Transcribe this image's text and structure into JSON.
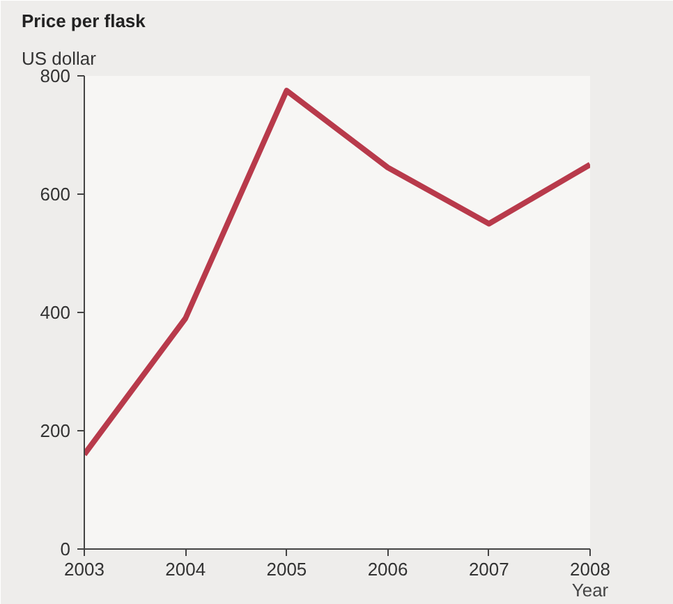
{
  "chart_data": {
    "type": "line",
    "title": "Price per flask",
    "subtitle": "US dollar",
    "xlabel": "Year",
    "x": [
      2003,
      2004,
      2005,
      2006,
      2007,
      2008
    ],
    "series": [
      {
        "color": "#b83a4b",
        "values": [
          160,
          390,
          775,
          645,
          550,
          650
        ]
      }
    ],
    "xlim": [
      2003,
      2008
    ],
    "xticks": [
      2003,
      2004,
      2005,
      2006,
      2007,
      2008
    ],
    "ylim": [
      0,
      800
    ],
    "yticks": [
      0,
      200,
      400,
      600,
      800
    ],
    "grid": false,
    "marker": "none",
    "line_style": "solid"
  }
}
